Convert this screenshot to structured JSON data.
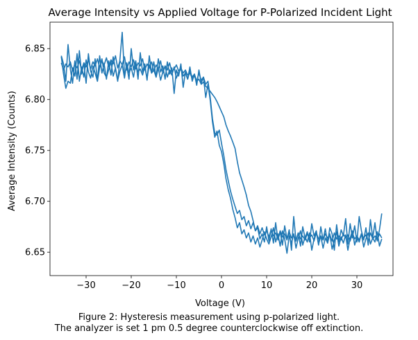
{
  "chart_data": {
    "type": "line",
    "title": "Average Intensity vs Applied Voltage for P-Polarized Incident Light",
    "xlabel": "Voltage (V)",
    "ylabel": "Average Intensity (Counts)",
    "xlim": [
      -38,
      38
    ],
    "ylim": [
      6.627,
      6.876
    ],
    "xticks": [
      -30,
      -20,
      -10,
      0,
      10,
      20,
      30
    ],
    "xtick_labels": [
      "−30",
      "−20",
      "−10",
      "0",
      "10",
      "20",
      "30"
    ],
    "yticks": [
      6.65,
      6.7,
      6.75,
      6.8,
      6.85
    ],
    "ytick_labels": [
      "6.65",
      "6.70",
      "6.75",
      "6.80",
      "6.85"
    ],
    "grid": false,
    "series_color": "#1f77b4",
    "caption": [
      "Figure 2: Hysteresis measurement using p-polarized light.",
      "The analyzer is set 1 pm 0.5 degree counterclockwise off extinction."
    ],
    "series": [
      {
        "x": [
          -35.5,
          -35,
          -34.5,
          -34,
          -33.5,
          -33,
          -32.5,
          -32,
          -31.5,
          -31,
          -30.5,
          -30,
          -29.5,
          -29,
          -28.5,
          -28,
          -27.5,
          -27,
          -26.5,
          -26,
          -25.5,
          -25,
          -24.5,
          -24,
          -23.5,
          -23,
          -22.5,
          -22,
          -21.5,
          -21,
          -20.5,
          -20,
          -19.5,
          -19,
          -18.5,
          -18,
          -17.5,
          -17,
          -16.5,
          -16,
          -15.5,
          -15,
          -14.5,
          -14,
          -13.5,
          -13,
          -12.5,
          -12,
          -11.5,
          -11,
          -10.5,
          -10,
          -9.5,
          -9,
          -8.5,
          -8,
          -7.5,
          -7,
          -6.5,
          -6,
          -5.5,
          -5,
          -4.5,
          -4,
          -3.5,
          -3,
          -2.5,
          -2,
          -1.5,
          -1,
          -0.5,
          0,
          0.5,
          1,
          1.5,
          2,
          2.5,
          3,
          3.5,
          4,
          4.5,
          5,
          5.5,
          6,
          6.5,
          7,
          7.5,
          8,
          8.5,
          9,
          9.5,
          10,
          10.5,
          11,
          11.5,
          12,
          12.5,
          13,
          13.5,
          14,
          14.5,
          15,
          15.5,
          16,
          16.5,
          17,
          17.5,
          18,
          18.5,
          19,
          19.5,
          20,
          20.5,
          21,
          21.5,
          22,
          22.5,
          23,
          23.5,
          24,
          24.5,
          25,
          25.5,
          26,
          26.5,
          27,
          27.5,
          28,
          28.5,
          29,
          29.5,
          30,
          30.5,
          31,
          31.5,
          32,
          32.5,
          33,
          33.5,
          34,
          34.5,
          35,
          35.5
        ],
        "y": [
          6.842,
          6.825,
          6.811,
          6.818,
          6.816,
          6.831,
          6.823,
          6.845,
          6.818,
          6.832,
          6.822,
          6.839,
          6.827,
          6.821,
          6.833,
          6.826,
          6.818,
          6.831,
          6.84,
          6.826,
          6.822,
          6.829,
          6.837,
          6.823,
          6.831,
          6.819,
          6.828,
          6.834,
          6.821,
          6.836,
          6.826,
          6.831,
          6.822,
          6.835,
          6.827,
          6.83,
          6.824,
          6.832,
          6.821,
          6.834,
          6.826,
          6.829,
          6.822,
          6.831,
          6.819,
          6.827,
          6.833,
          6.822,
          6.829,
          6.824,
          6.832,
          6.821,
          6.827,
          6.83,
          6.823,
          6.826,
          6.82,
          6.828,
          6.822,
          6.825,
          6.818,
          6.826,
          6.819,
          6.822,
          6.815,
          6.818,
          6.802,
          6.781,
          6.767,
          6.765,
          6.77,
          6.757,
          6.745,
          6.731,
          6.72,
          6.71,
          6.702,
          6.695,
          6.688,
          6.691,
          6.682,
          6.685,
          6.676,
          6.681,
          6.673,
          6.679,
          6.671,
          6.676,
          6.668,
          6.674,
          6.667,
          6.671,
          6.665,
          6.672,
          6.666,
          6.669,
          6.663,
          6.671,
          6.665,
          6.668,
          6.662,
          6.67,
          6.664,
          6.667,
          6.661,
          6.669,
          6.663,
          6.666,
          6.662,
          6.668,
          6.664,
          6.667,
          6.661,
          6.669,
          6.663,
          6.666,
          6.662,
          6.668,
          6.664,
          6.667,
          6.661,
          6.669,
          6.663,
          6.666,
          6.662,
          6.668,
          6.664,
          6.667,
          6.661,
          6.669,
          6.663,
          6.666,
          6.662,
          6.668,
          6.664,
          6.667,
          6.661,
          6.669,
          6.663,
          6.666,
          6.662,
          6.668,
          6.664
        ]
      },
      {
        "x": [
          35.5,
          35,
          34.5,
          34,
          33.5,
          33,
          32.5,
          32,
          31.5,
          31,
          30.5,
          30,
          29.5,
          29,
          28.5,
          28,
          27.5,
          27,
          26.5,
          26,
          25.5,
          25,
          24.5,
          24,
          23.5,
          23,
          22.5,
          22,
          21.5,
          21,
          20.5,
          20,
          19.5,
          19,
          18.5,
          18,
          17.5,
          17,
          16.5,
          16,
          15.5,
          15,
          14.5,
          14,
          13.5,
          13,
          12.5,
          12,
          11.5,
          11,
          10.5,
          10,
          9.5,
          9,
          8.5,
          8,
          7.5,
          7,
          6.5,
          6,
          5.5,
          5,
          4.5,
          4,
          3.5,
          3,
          2.5,
          2,
          1.5,
          1,
          0.5,
          0,
          -0.5,
          -1,
          -1.5,
          -2,
          -2.5,
          -3,
          -3.5,
          -4,
          -4.5,
          -5,
          -5.5,
          -6,
          -6.5,
          -7,
          -7.5,
          -8,
          -8.5,
          -9,
          -9.5,
          -10,
          -10.5,
          -11,
          -11.5,
          -12,
          -12.5,
          -13,
          -13.5,
          -14,
          -14.5,
          -15,
          -15.5,
          -16,
          -16.5,
          -17,
          -17.5,
          -18,
          -18.5,
          -19,
          -19.5,
          -20,
          -20.5,
          -21,
          -21.5,
          -22,
          -22.5,
          -23,
          -23.5,
          -24,
          -24.5,
          -25,
          -25.5,
          -26,
          -26.5,
          -27,
          -27.5,
          -28,
          -28.5,
          -29,
          -29.5,
          -30,
          -30.5,
          -31,
          -31.5,
          -32,
          -32.5,
          -33,
          -33.5,
          -34,
          -34.5,
          -35,
          -35.5
        ],
        "y": [
          6.688,
          6.672,
          6.661,
          6.679,
          6.664,
          6.682,
          6.657,
          6.674,
          6.662,
          6.671,
          6.685,
          6.66,
          6.676,
          6.664,
          6.678,
          6.658,
          6.683,
          6.666,
          6.672,
          6.66,
          6.677,
          6.652,
          6.668,
          6.674,
          6.659,
          6.673,
          6.662,
          6.675,
          6.657,
          6.671,
          6.666,
          6.678,
          6.66,
          6.67,
          6.664,
          6.675,
          6.656,
          6.669,
          6.661,
          6.685,
          6.652,
          6.672,
          6.663,
          6.676,
          6.657,
          6.67,
          6.662,
          6.679,
          6.659,
          6.673,
          6.661,
          6.675,
          6.66,
          6.668,
          6.663,
          6.674,
          6.671,
          6.681,
          6.69,
          6.696,
          6.706,
          6.714,
          6.721,
          6.728,
          6.739,
          6.752,
          6.758,
          6.764,
          6.769,
          6.775,
          6.783,
          6.788,
          6.793,
          6.798,
          6.802,
          6.805,
          6.808,
          6.811,
          6.813,
          6.817,
          6.815,
          6.82,
          6.818,
          6.823,
          6.821,
          6.826,
          6.824,
          6.829,
          6.826,
          6.831,
          6.828,
          6.834,
          6.83,
          6.827,
          6.836,
          6.829,
          6.833,
          6.826,
          6.838,
          6.83,
          6.834,
          6.828,
          6.837,
          6.831,
          6.835,
          6.829,
          6.84,
          6.833,
          6.836,
          6.83,
          6.839,
          6.832,
          6.837,
          6.829,
          6.842,
          6.834,
          6.838,
          6.831,
          6.843,
          6.835,
          6.839,
          6.832,
          6.841,
          6.834,
          6.838,
          6.831,
          6.84,
          6.833,
          6.837,
          6.83,
          6.839,
          6.832,
          6.836,
          6.829,
          6.838,
          6.831,
          6.835,
          6.828,
          6.837,
          6.832,
          6.835,
          6.829,
          6.836
        ]
      },
      {
        "x": [
          -35.5,
          -35,
          -34.5,
          -34,
          -33.5,
          -33,
          -32.5,
          -32,
          -31.5,
          -31,
          -30.5,
          -30,
          -29.5,
          -29,
          -28.5,
          -28,
          -27.5,
          -27,
          -26.5,
          -26,
          -25.5,
          -25,
          -24.5,
          -24,
          -23.5,
          -23,
          -22.5,
          -22,
          -21.5,
          -21,
          -20.5,
          -20,
          -19.5,
          -19,
          -18.5,
          -18,
          -17.5,
          -17,
          -16.5,
          -16,
          -15.5,
          -15,
          -14.5,
          -14,
          -13.5,
          -13,
          -12.5,
          -12,
          -11.5,
          -11,
          -10.5,
          -10,
          -9.5,
          -9,
          -8.5,
          -8,
          -7.5,
          -7,
          -6.5,
          -6,
          -5.5,
          -5,
          -4.5,
          -4,
          -3.5,
          -3,
          -2.5,
          -2,
          -1.5,
          -1,
          -0.5,
          0,
          0.5,
          1,
          1.5,
          2,
          2.5,
          3,
          3.5,
          4,
          4.5,
          5,
          5.5,
          6,
          6.5,
          7,
          7.5,
          8,
          8.5,
          9,
          9.5,
          10,
          10.5,
          11,
          11.5,
          12,
          12.5,
          13,
          13.5,
          14,
          14.5,
          15,
          15.5,
          16,
          16.5,
          17,
          17.5,
          18,
          18.5,
          19,
          19.5,
          20,
          20.5,
          21,
          21.5,
          22,
          22.5,
          23,
          23.5,
          24,
          24.5,
          25,
          25.5,
          26,
          26.5,
          27,
          27.5,
          28,
          28.5,
          29,
          29.5,
          30,
          30.5,
          31,
          31.5,
          32,
          32.5,
          33,
          33.5,
          34,
          34.5,
          35,
          35.5
        ],
        "y": [
          6.843,
          6.835,
          6.818,
          6.854,
          6.83,
          6.816,
          6.838,
          6.82,
          6.848,
          6.825,
          6.836,
          6.816,
          6.845,
          6.828,
          6.822,
          6.84,
          6.818,
          6.843,
          6.826,
          6.835,
          6.82,
          6.838,
          6.824,
          6.842,
          6.83,
          6.818,
          6.84,
          6.866,
          6.824,
          6.833,
          6.82,
          6.85,
          6.829,
          6.838,
          6.82,
          6.846,
          6.827,
          6.835,
          6.819,
          6.843,
          6.826,
          6.837,
          6.822,
          6.84,
          6.827,
          6.833,
          6.82,
          6.837,
          6.825,
          6.831,
          6.806,
          6.829,
          6.823,
          6.835,
          6.812,
          6.827,
          6.82,
          6.832,
          6.818,
          6.825,
          6.814,
          6.829,
          6.816,
          6.822,
          6.802,
          6.815,
          6.799,
          6.778,
          6.763,
          6.769,
          6.755,
          6.749,
          6.737,
          6.722,
          6.711,
          6.703,
          6.692,
          6.684,
          6.674,
          6.679,
          6.668,
          6.672,
          6.664,
          6.669,
          6.66,
          6.666,
          6.658,
          6.664,
          6.655,
          6.662,
          6.67,
          6.663,
          6.658,
          6.665,
          6.674,
          6.66,
          6.668,
          6.656,
          6.671,
          6.663,
          6.649,
          6.666,
          6.659,
          6.668,
          6.654,
          6.664,
          6.671,
          6.657,
          6.665,
          6.66,
          6.669,
          6.652,
          6.663,
          6.67,
          6.658,
          6.666,
          6.654,
          6.664,
          6.659,
          6.668,
          6.653,
          6.662,
          6.67,
          6.656,
          6.665,
          6.659,
          6.667,
          6.652,
          6.664,
          6.671,
          6.657,
          6.665,
          6.66,
          6.668,
          6.655,
          6.663,
          6.669,
          6.658,
          6.664,
          6.66,
          6.67,
          6.656,
          6.663
        ]
      }
    ]
  }
}
